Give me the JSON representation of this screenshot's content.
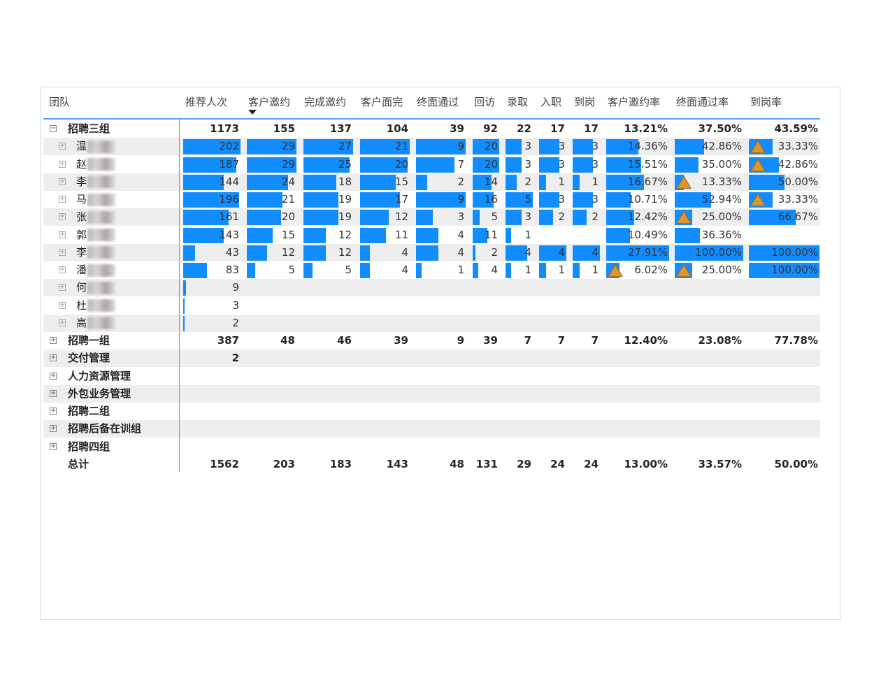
{
  "colors": {
    "bar": "#118dff",
    "alert": "#dd962e",
    "accent_line": "#5ba4e8",
    "zebra": "#eeeeee"
  },
  "header": {
    "team": "团队",
    "columns": [
      "推荐人次",
      "客户邀约",
      "完成邀约",
      "客户面完",
      "终面通过",
      "回访",
      "录取",
      "入职",
      "到岗",
      "客户邀约率",
      "终面通过率",
      "到岗率"
    ],
    "sorted_column": "客户邀约",
    "sort_direction": "descending"
  },
  "rows": [
    {
      "label": "招聘三组",
      "level": 0,
      "expanded": true,
      "values": [
        "1173",
        "155",
        "137",
        "104",
        "39",
        "92",
        "22",
        "17",
        "17",
        "13.21%",
        "37.50%",
        "43.59%"
      ],
      "alerts": []
    },
    {
      "label": "温",
      "level": 1,
      "expanded": false,
      "values": [
        "202",
        "29",
        "27",
        "21",
        "9",
        "20",
        "3",
        "3",
        "3",
        "14.36%",
        "42.86%",
        "33.33%"
      ],
      "alerts": [
        11
      ]
    },
    {
      "label": "赵",
      "level": 1,
      "expanded": false,
      "values": [
        "187",
        "29",
        "25",
        "20",
        "7",
        "20",
        "3",
        "3",
        "3",
        "15.51%",
        "35.00%",
        "42.86%"
      ],
      "alerts": [
        11
      ]
    },
    {
      "label": "李",
      "level": 1,
      "expanded": false,
      "values": [
        "144",
        "24",
        "18",
        "15",
        "2",
        "14",
        "2",
        "1",
        "1",
        "16.67%",
        "13.33%",
        "50.00%"
      ],
      "alerts": [
        10
      ]
    },
    {
      "label": "马",
      "level": 1,
      "expanded": false,
      "values": [
        "196",
        "21",
        "19",
        "17",
        "9",
        "16",
        "5",
        "3",
        "3",
        "10.71%",
        "52.94%",
        "33.33%"
      ],
      "alerts": [
        11
      ]
    },
    {
      "label": "张",
      "level": 1,
      "expanded": false,
      "values": [
        "161",
        "20",
        "19",
        "12",
        "3",
        "5",
        "3",
        "2",
        "2",
        "12.42%",
        "25.00%",
        "66.67%"
      ],
      "alerts": [
        10
      ]
    },
    {
      "label": "郭",
      "level": 1,
      "expanded": false,
      "values": [
        "143",
        "15",
        "12",
        "11",
        "4",
        "11",
        "1",
        null,
        null,
        "10.49%",
        "36.36%",
        null
      ],
      "alerts": []
    },
    {
      "label": "李",
      "level": 1,
      "expanded": false,
      "values": [
        "43",
        "12",
        "12",
        "4",
        "4",
        "2",
        "4",
        "4",
        "4",
        "27.91%",
        "100.00%",
        "100.00%"
      ],
      "alerts": []
    },
    {
      "label": "潘",
      "level": 1,
      "expanded": false,
      "values": [
        "83",
        "5",
        "5",
        "4",
        "1",
        "4",
        "1",
        "1",
        "1",
        "6.02%",
        "25.00%",
        "100.00%"
      ],
      "alerts": [
        9,
        10
      ]
    },
    {
      "label": "何",
      "level": 1,
      "expanded": false,
      "values": [
        "9",
        null,
        null,
        null,
        null,
        null,
        null,
        null,
        null,
        null,
        null,
        null
      ],
      "alerts": []
    },
    {
      "label": "杜",
      "level": 1,
      "expanded": false,
      "values": [
        "3",
        null,
        null,
        null,
        null,
        null,
        null,
        null,
        null,
        null,
        null,
        null
      ],
      "alerts": []
    },
    {
      "label": "高",
      "level": 1,
      "expanded": false,
      "values": [
        "2",
        null,
        null,
        null,
        null,
        null,
        null,
        null,
        null,
        null,
        null,
        null
      ],
      "alerts": []
    },
    {
      "label": "招聘一组",
      "level": 0,
      "expanded": false,
      "values": [
        "387",
        "48",
        "46",
        "39",
        "9",
        "39",
        "7",
        "7",
        "7",
        "12.40%",
        "23.08%",
        "77.78%"
      ],
      "alerts": []
    },
    {
      "label": "交付管理",
      "level": 0,
      "expanded": false,
      "values": [
        "2",
        null,
        null,
        null,
        null,
        null,
        null,
        null,
        null,
        null,
        null,
        null
      ],
      "alerts": []
    },
    {
      "label": "人力资源管理",
      "level": 0,
      "expanded": false,
      "values": [
        null,
        null,
        null,
        null,
        null,
        null,
        null,
        null,
        null,
        null,
        null,
        null
      ],
      "alerts": []
    },
    {
      "label": "外包业务管理",
      "level": 0,
      "expanded": false,
      "values": [
        null,
        null,
        null,
        null,
        null,
        null,
        null,
        null,
        null,
        null,
        null,
        null
      ],
      "alerts": []
    },
    {
      "label": "招聘二组",
      "level": 0,
      "expanded": false,
      "values": [
        null,
        null,
        null,
        null,
        null,
        null,
        null,
        null,
        null,
        null,
        null,
        null
      ],
      "alerts": []
    },
    {
      "label": "招聘后备在训组",
      "level": 0,
      "expanded": false,
      "values": [
        null,
        null,
        null,
        null,
        null,
        null,
        null,
        null,
        null,
        null,
        null,
        null
      ],
      "alerts": []
    },
    {
      "label": "招聘四组",
      "level": 0,
      "expanded": false,
      "values": [
        null,
        null,
        null,
        null,
        null,
        null,
        null,
        null,
        null,
        null,
        null,
        null
      ],
      "alerts": []
    }
  ],
  "total": {
    "label": "总计",
    "values": [
      "1562",
      "203",
      "183",
      "143",
      "48",
      "131",
      "29",
      "24",
      "24",
      "13.00%",
      "33.57%",
      "50.00%"
    ]
  }
}
